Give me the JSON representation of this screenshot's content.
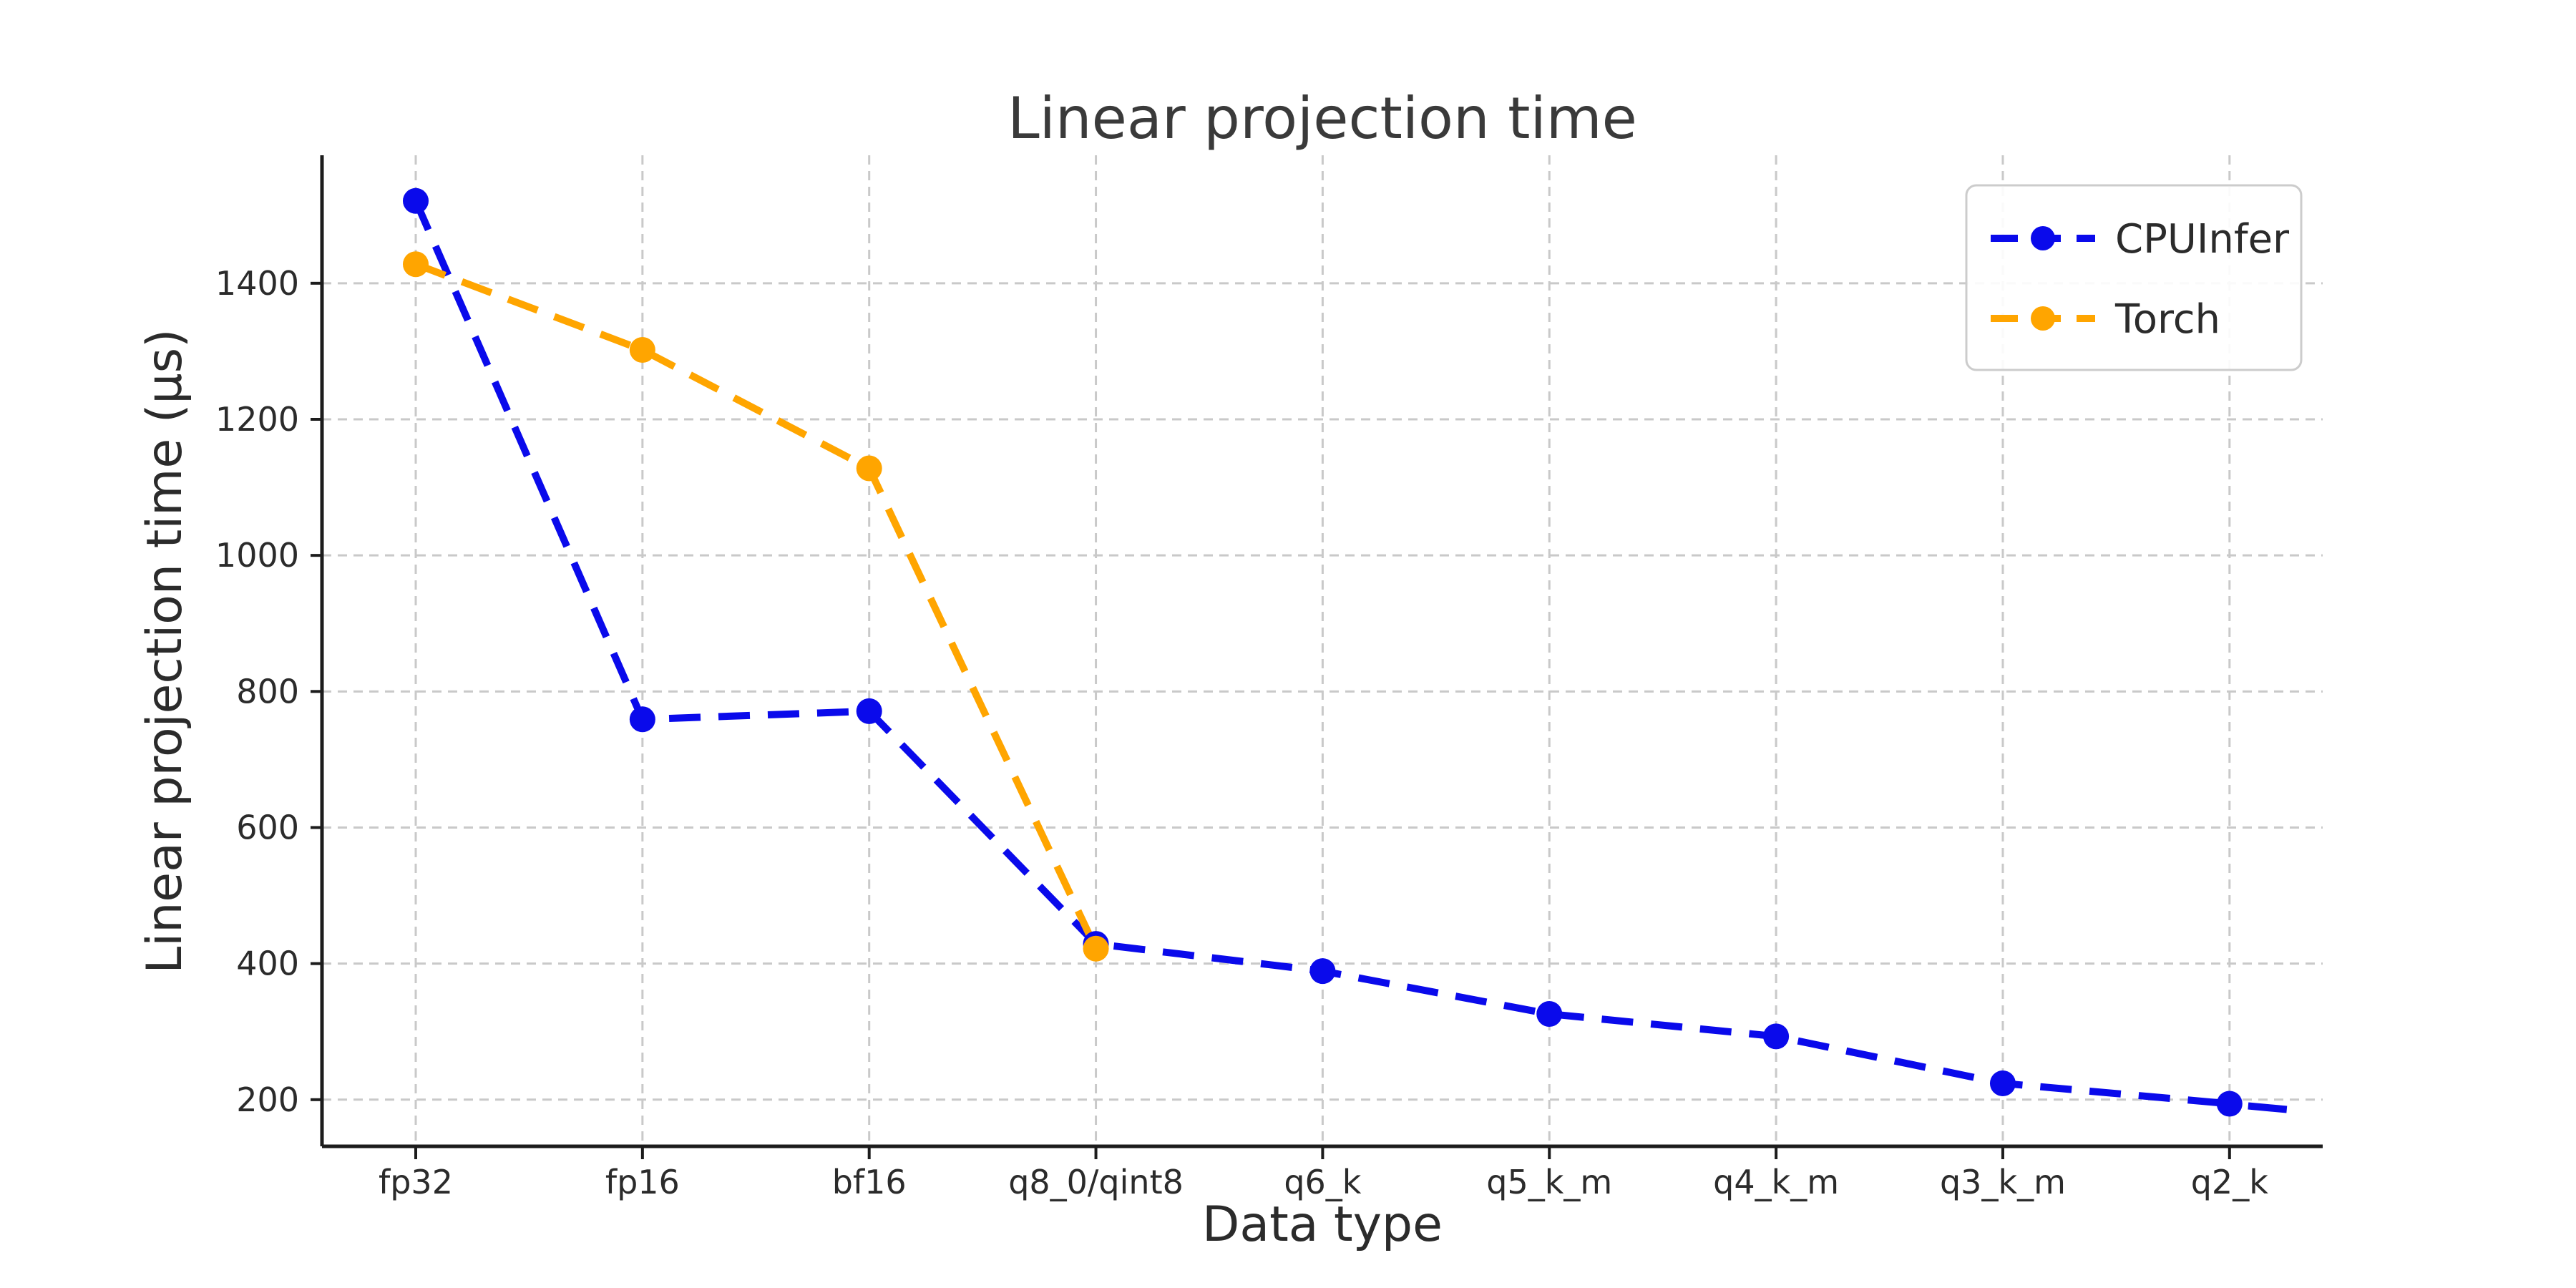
{
  "title": "Linear projection time",
  "chart_data": {
    "type": "line",
    "title": "Linear projection time",
    "xlabel": "Data type",
    "ylabel": "Linear projection time (µs)",
    "categories": [
      "fp32",
      "fp16",
      "bf16",
      "q8_0/qint8",
      "q6_k",
      "q5_k_m",
      "q4_k_m",
      "q3_k_m",
      "q2_k"
    ],
    "yticks": [
      200,
      400,
      600,
      800,
      1000,
      1200,
      1400
    ],
    "ylim": [
      131,
      1588
    ],
    "grid": true,
    "legend_position": "upper right",
    "series": [
      {
        "name": "CPUInfer",
        "color": "#0a0aeb",
        "linestyle": "dashed",
        "marker": "circle",
        "values": [
          1521,
          759,
          771,
          429,
          389,
          326,
          293,
          224,
          194
        ]
      },
      {
        "name": "Torch",
        "color": "#ffa500",
        "linestyle": "dashed",
        "marker": "circle",
        "values": [
          1428,
          1302,
          1128,
          422,
          null,
          null,
          null,
          null,
          null
        ]
      }
    ],
    "style": {
      "background": "#ffffff",
      "grid_color": "#c9c9c9",
      "spine_color": "#1c1c1c",
      "tick_text_color": "#2b2b2b",
      "title_color": "#3a3a3a",
      "legend_border_color": "#cccccc",
      "legend_background": "#ffffff"
    }
  }
}
